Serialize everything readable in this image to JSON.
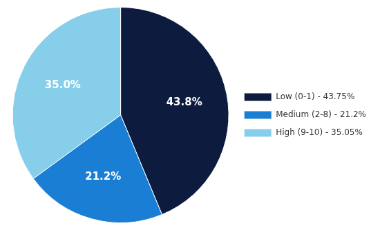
{
  "chart_data": {
    "type": "pie",
    "categories": [
      "Low (0-1) - 43.75%",
      "Medium (2-8) - 21.2%",
      "High (9-10) - 35.05%"
    ],
    "values": [
      43.75,
      21.2,
      35.05
    ],
    "value_labels": [
      "43.8%",
      "21.2%",
      "35.0%"
    ],
    "colors": [
      "#0d1b3e",
      "#1a7fd4",
      "#87ceeb"
    ],
    "data_labels": true,
    "legend": "right"
  }
}
